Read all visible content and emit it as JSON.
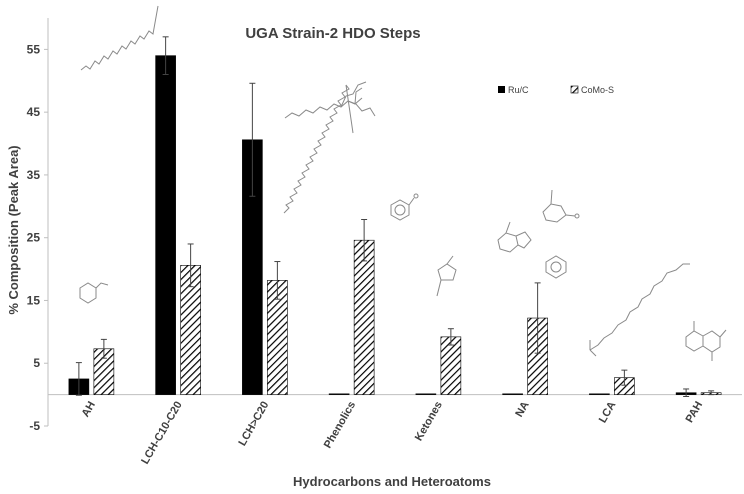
{
  "chart_data": {
    "type": "bar",
    "title": "UGA Strain-2 HDO Steps",
    "xlabel": "Hydrocarbons and Heteroatoms",
    "ylabel": "% Composition (Peak Area)",
    "ylim": [
      -5,
      60
    ],
    "yticks": [
      -5,
      5,
      15,
      25,
      35,
      45,
      55
    ],
    "categories": [
      "AH",
      "LCH-C10-C20",
      "LCH>C20",
      "Phenolics",
      "Ketones",
      "NA",
      "LCA",
      "PAH"
    ],
    "series": [
      {
        "name": "Ru/C",
        "fill": "solid",
        "color": "#000000",
        "values": [
          2.5,
          54.0,
          40.6,
          0,
          0,
          0,
          0,
          0.3
        ],
        "errors": [
          2.6,
          3.0,
          9.0,
          0,
          0,
          0,
          0,
          0.6
        ]
      },
      {
        "name": "CoMo-S",
        "fill": "hatch",
        "color": "#000000",
        "values": [
          7.3,
          20.6,
          18.2,
          24.6,
          9.2,
          12.2,
          2.7,
          0.3
        ],
        "errors": [
          1.5,
          3.4,
          3.0,
          3.3,
          1.3,
          5.6,
          1.2,
          0.3
        ]
      }
    ],
    "legend_position": "top-right",
    "grid": false
  },
  "icons": [
    "molecule-icon"
  ]
}
